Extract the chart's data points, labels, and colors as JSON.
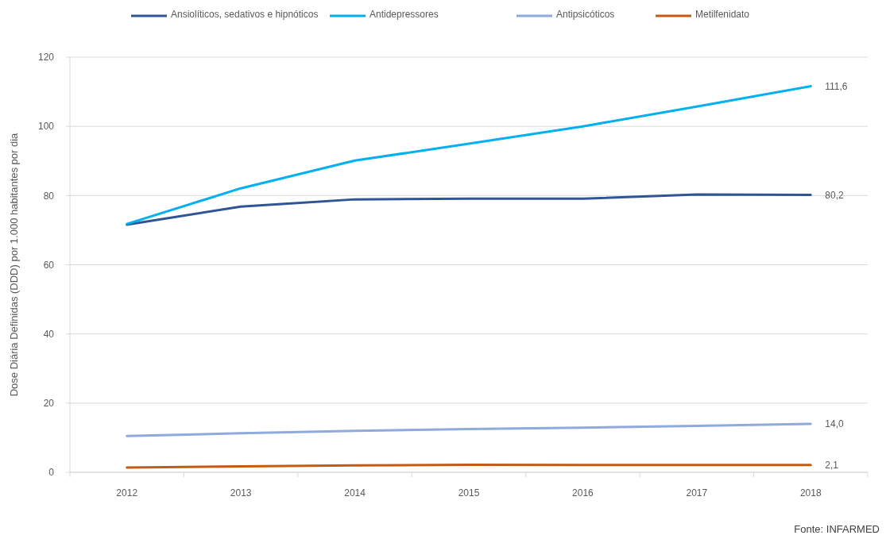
{
  "chart_data": {
    "type": "line",
    "ylabel": "Dose Diária Definidas (DDD) por 1.000 habitantes por dia",
    "categories": [
      "2012",
      "2013",
      "2014",
      "2015",
      "2016",
      "2017",
      "2018"
    ],
    "series": [
      {
        "name": "Ansiolíticos, sedativos e hipnóticos",
        "color": "#2f5597",
        "values": [
          71.6,
          76.8,
          78.9,
          79.1,
          79.1,
          80.3,
          80.2
        ],
        "value_labels": [
          null,
          null,
          null,
          null,
          null,
          null,
          "80,2"
        ]
      },
      {
        "name": "Antidepressores",
        "color": "#00b0f0",
        "values": [
          71.8,
          82.1,
          90.1,
          95.0,
          100.0,
          105.7,
          111.6
        ],
        "value_labels": [
          null,
          null,
          null,
          null,
          null,
          null,
          "111,6"
        ]
      },
      {
        "name": "Antipsicóticos",
        "color": "#8faadc",
        "values": [
          10.5,
          11.3,
          12.0,
          12.5,
          12.9,
          13.4,
          14.0
        ],
        "value_labels": [
          null,
          null,
          null,
          null,
          null,
          null,
          "14,0"
        ]
      },
      {
        "name": "Metilfenidato",
        "color": "#c55a11",
        "values": [
          1.4,
          1.7,
          2.0,
          2.2,
          2.1,
          2.1,
          2.1
        ],
        "value_labels": [
          null,
          null,
          null,
          null,
          null,
          null,
          "2,1"
        ]
      }
    ],
    "ylim": [
      0,
      120
    ],
    "yticks": [
      0,
      20,
      40,
      60,
      80,
      100,
      120
    ],
    "grid": "y",
    "legend": "top",
    "marker": "none",
    "annotations": [
      "Fonte: INFARMED"
    ]
  }
}
